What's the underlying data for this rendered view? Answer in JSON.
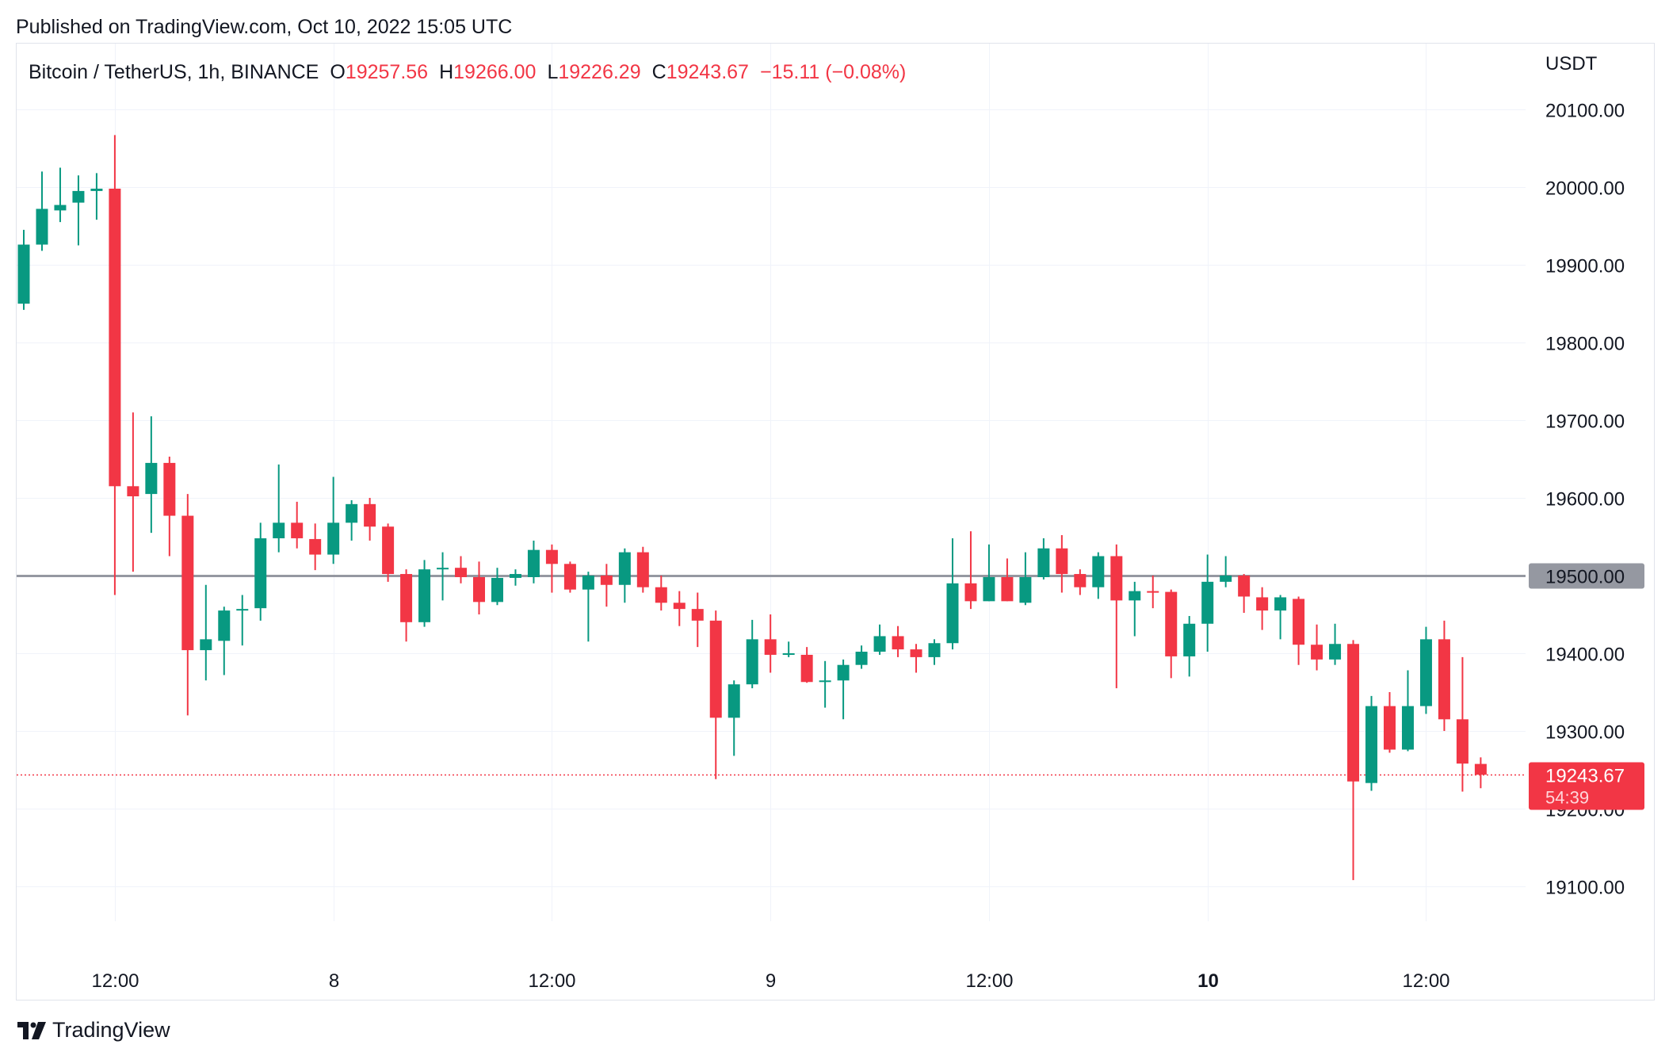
{
  "header": {
    "published": "Published on TradingView.com, Oct 10, 2022 15:05 UTC"
  },
  "legend": {
    "symbol": "Bitcoin / TetherUS, 1h, BINANCE",
    "open_label": "O",
    "open": "19257.56",
    "high_label": "H",
    "high": "19266.00",
    "low_label": "L",
    "low": "19226.29",
    "close_label": "C",
    "close": "19243.67",
    "change": "−15.11 (−0.08%)"
  },
  "footer": {
    "brand": "TradingView",
    "logo_icon": "tradingview-logo-icon"
  },
  "colors": {
    "up": "#089981",
    "down": "#f23645",
    "grid": "#f0f3fa",
    "hline": "#9598a1"
  },
  "chart_data": {
    "type": "candlestick",
    "symbol": "Bitcoin / TetherUS",
    "interval": "1h",
    "exchange": "BINANCE",
    "currency_label": "USDT",
    "y_ticks": [
      "20100.00",
      "20000.00",
      "19900.00",
      "19800.00",
      "19700.00",
      "19600.00",
      "19500.00",
      "19400.00",
      "19300.00",
      "19200.00",
      "19100.00"
    ],
    "x_ticks": [
      {
        "label": "12:00",
        "bar": 5,
        "bold": false
      },
      {
        "label": "8",
        "bar": 17,
        "bold": false
      },
      {
        "label": "12:00",
        "bar": 29,
        "bold": false
      },
      {
        "label": "9",
        "bar": 41,
        "bold": false
      },
      {
        "label": "12:00",
        "bar": 53,
        "bold": false
      },
      {
        "label": "10",
        "bar": 65,
        "bold": true
      },
      {
        "label": "12:00",
        "bar": 77,
        "bold": false
      }
    ],
    "horizontal_line": {
      "price": 19500.0,
      "label": "19500.00"
    },
    "last_price": {
      "price": 19243.67,
      "label": "19243.67",
      "countdown": "54:39"
    },
    "grid": true,
    "candles": [
      {
        "o": 19850,
        "h": 19945,
        "l": 19842,
        "c": 19926
      },
      {
        "o": 19926,
        "h": 20020,
        "l": 19918,
        "c": 19972
      },
      {
        "o": 19970,
        "h": 20025,
        "l": 19955,
        "c": 19977
      },
      {
        "o": 19980,
        "h": 20015,
        "l": 19925,
        "c": 19995
      },
      {
        "o": 19995,
        "h": 20018,
        "l": 19958,
        "c": 19998
      },
      {
        "o": 19998,
        "h": 20067,
        "l": 19475,
        "c": 19615
      },
      {
        "o": 19615,
        "h": 19710,
        "l": 19505,
        "c": 19602
      },
      {
        "o": 19605,
        "h": 19705,
        "l": 19555,
        "c": 19645
      },
      {
        "o": 19645,
        "h": 19653,
        "l": 19525,
        "c": 19577
      },
      {
        "o": 19577,
        "h": 19605,
        "l": 19320,
        "c": 19404
      },
      {
        "o": 19404,
        "h": 19488,
        "l": 19365,
        "c": 19418
      },
      {
        "o": 19416,
        "h": 19460,
        "l": 19372,
        "c": 19455
      },
      {
        "o": 19455,
        "h": 19475,
        "l": 19410,
        "c": 19457
      },
      {
        "o": 19458,
        "h": 19568,
        "l": 19442,
        "c": 19548
      },
      {
        "o": 19548,
        "h": 19643,
        "l": 19530,
        "c": 19568
      },
      {
        "o": 19568,
        "h": 19595,
        "l": 19535,
        "c": 19548
      },
      {
        "o": 19547,
        "h": 19567,
        "l": 19507,
        "c": 19527
      },
      {
        "o": 19527,
        "h": 19627,
        "l": 19515,
        "c": 19568
      },
      {
        "o": 19568,
        "h": 19597,
        "l": 19545,
        "c": 19592
      },
      {
        "o": 19592,
        "h": 19600,
        "l": 19545,
        "c": 19563
      },
      {
        "o": 19563,
        "h": 19567,
        "l": 19492,
        "c": 19502
      },
      {
        "o": 19502,
        "h": 19508,
        "l": 19415,
        "c": 19440
      },
      {
        "o": 19440,
        "h": 19520,
        "l": 19434,
        "c": 19508
      },
      {
        "o": 19508,
        "h": 19530,
        "l": 19468,
        "c": 19510
      },
      {
        "o": 19510,
        "h": 19525,
        "l": 19490,
        "c": 19498
      },
      {
        "o": 19498,
        "h": 19518,
        "l": 19450,
        "c": 19466
      },
      {
        "o": 19466,
        "h": 19510,
        "l": 19462,
        "c": 19497
      },
      {
        "o": 19497,
        "h": 19508,
        "l": 19487,
        "c": 19502
      },
      {
        "o": 19498,
        "h": 19545,
        "l": 19490,
        "c": 19533
      },
      {
        "o": 19533,
        "h": 19540,
        "l": 19478,
        "c": 19515
      },
      {
        "o": 19515,
        "h": 19518,
        "l": 19478,
        "c": 19482
      },
      {
        "o": 19482,
        "h": 19505,
        "l": 19415,
        "c": 19500
      },
      {
        "o": 19500,
        "h": 19515,
        "l": 19460,
        "c": 19488
      },
      {
        "o": 19488,
        "h": 19535,
        "l": 19465,
        "c": 19530
      },
      {
        "o": 19530,
        "h": 19537,
        "l": 19478,
        "c": 19485
      },
      {
        "o": 19485,
        "h": 19500,
        "l": 19455,
        "c": 19465
      },
      {
        "o": 19465,
        "h": 19480,
        "l": 19435,
        "c": 19457
      },
      {
        "o": 19457,
        "h": 19478,
        "l": 19408,
        "c": 19442
      },
      {
        "o": 19442,
        "h": 19455,
        "l": 19238,
        "c": 19317
      },
      {
        "o": 19317,
        "h": 19365,
        "l": 19268,
        "c": 19360
      },
      {
        "o": 19360,
        "h": 19443,
        "l": 19355,
        "c": 19418
      },
      {
        "o": 19418,
        "h": 19450,
        "l": 19375,
        "c": 19398
      },
      {
        "o": 19398,
        "h": 19415,
        "l": 19395,
        "c": 19400
      },
      {
        "o": 19398,
        "h": 19408,
        "l": 19362,
        "c": 19363
      },
      {
        "o": 19363,
        "h": 19390,
        "l": 19330,
        "c": 19365
      },
      {
        "o": 19365,
        "h": 19392,
        "l": 19315,
        "c": 19385
      },
      {
        "o": 19385,
        "h": 19410,
        "l": 19380,
        "c": 19402
      },
      {
        "o": 19402,
        "h": 19437,
        "l": 19398,
        "c": 19422
      },
      {
        "o": 19422,
        "h": 19435,
        "l": 19395,
        "c": 19405
      },
      {
        "o": 19405,
        "h": 19412,
        "l": 19375,
        "c": 19395
      },
      {
        "o": 19395,
        "h": 19418,
        "l": 19385,
        "c": 19413
      },
      {
        "o": 19413,
        "h": 19548,
        "l": 19405,
        "c": 19490
      },
      {
        "o": 19490,
        "h": 19557,
        "l": 19457,
        "c": 19467
      },
      {
        "o": 19467,
        "h": 19540,
        "l": 19467,
        "c": 19498
      },
      {
        "o": 19498,
        "h": 19522,
        "l": 19467,
        "c": 19467
      },
      {
        "o": 19465,
        "h": 19530,
        "l": 19462,
        "c": 19498
      },
      {
        "o": 19498,
        "h": 19548,
        "l": 19495,
        "c": 19535
      },
      {
        "o": 19535,
        "h": 19552,
        "l": 19478,
        "c": 19502
      },
      {
        "o": 19502,
        "h": 19508,
        "l": 19475,
        "c": 19485
      },
      {
        "o": 19485,
        "h": 19530,
        "l": 19470,
        "c": 19525
      },
      {
        "o": 19525,
        "h": 19540,
        "l": 19355,
        "c": 19468
      },
      {
        "o": 19468,
        "h": 19492,
        "l": 19422,
        "c": 19480
      },
      {
        "o": 19480,
        "h": 19500,
        "l": 19458,
        "c": 19479
      },
      {
        "o": 19479,
        "h": 19482,
        "l": 19368,
        "c": 19396
      },
      {
        "o": 19396,
        "h": 19448,
        "l": 19370,
        "c": 19438
      },
      {
        "o": 19438,
        "h": 19527,
        "l": 19402,
        "c": 19492
      },
      {
        "o": 19492,
        "h": 19525,
        "l": 19485,
        "c": 19500
      },
      {
        "o": 19500,
        "h": 19502,
        "l": 19452,
        "c": 19473
      },
      {
        "o": 19472,
        "h": 19485,
        "l": 19430,
        "c": 19455
      },
      {
        "o": 19455,
        "h": 19475,
        "l": 19418,
        "c": 19472
      },
      {
        "o": 19470,
        "h": 19473,
        "l": 19385,
        "c": 19411
      },
      {
        "o": 19411,
        "h": 19437,
        "l": 19378,
        "c": 19392
      },
      {
        "o": 19392,
        "h": 19438,
        "l": 19385,
        "c": 19412
      },
      {
        "o": 19412,
        "h": 19417,
        "l": 19108,
        "c": 19235
      },
      {
        "o": 19233,
        "h": 19345,
        "l": 19223,
        "c": 19332
      },
      {
        "o": 19332,
        "h": 19350,
        "l": 19272,
        "c": 19276
      },
      {
        "o": 19276,
        "h": 19378,
        "l": 19274,
        "c": 19332
      },
      {
        "o": 19332,
        "h": 19434,
        "l": 19322,
        "c": 19418
      },
      {
        "o": 19418,
        "h": 19442,
        "l": 19300,
        "c": 19315
      },
      {
        "o": 19315,
        "h": 19395,
        "l": 19222,
        "c": 19258
      },
      {
        "o": 19257.56,
        "h": 19266.0,
        "l": 19226.29,
        "c": 19243.67
      }
    ]
  }
}
